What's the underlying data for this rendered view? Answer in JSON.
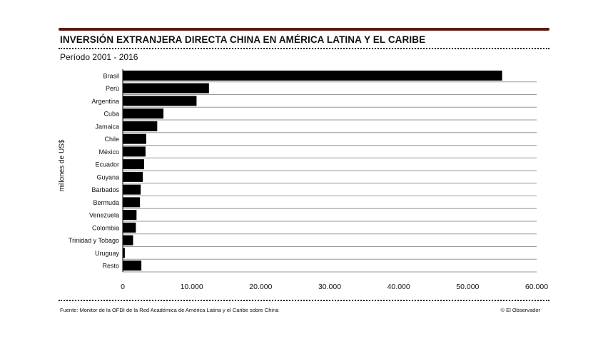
{
  "title": "INVERSIÓN EXTRANJERA DIRECTA CHINA EN AMÉRICA LATINA Y EL CARIBE",
  "subtitle": "Período 2001 - 2016",
  "source": "Fuente: Monitor de la OFDI de la Red Académica de América Latina y el Caribe sobre China",
  "credit": "© El Observador",
  "colors": {
    "bar": "#000000",
    "grid": "#9a9a9a",
    "rule": "#5a1a14"
  },
  "chart_data": {
    "type": "bar",
    "orientation": "horizontal",
    "ylabel": "millones de US$",
    "categories": [
      "Brasil",
      "Perú",
      "Argentina",
      "Cuba",
      "Jamaica",
      "Chile",
      "México",
      "Ecuador",
      "Guyana",
      "Barbados",
      "Bermuda",
      "Venezuela",
      "Colombia",
      "Trinidad y Tobago",
      "Uruguay",
      "Resto"
    ],
    "values": [
      55000,
      12500,
      10700,
      5900,
      5000,
      3400,
      3300,
      3100,
      2900,
      2600,
      2500,
      2000,
      1900,
      1500,
      300,
      2700
    ],
    "xlim": [
      0,
      60000
    ],
    "xticks": [
      0,
      10000,
      20000,
      30000,
      40000,
      50000,
      60000
    ],
    "xtick_labels": [
      "0",
      "10.000",
      "20.000",
      "30.000",
      "40.000",
      "50.000",
      "60.000"
    ],
    "grid": true
  }
}
